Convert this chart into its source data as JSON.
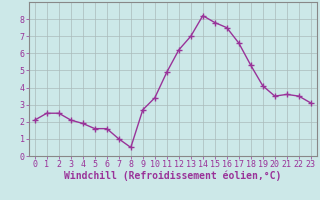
{
  "x": [
    0,
    1,
    2,
    3,
    4,
    5,
    6,
    7,
    8,
    9,
    10,
    11,
    12,
    13,
    14,
    15,
    16,
    17,
    18,
    19,
    20,
    21,
    22,
    23
  ],
  "y": [
    2.1,
    2.5,
    2.5,
    2.1,
    1.9,
    1.6,
    1.6,
    1.0,
    0.5,
    2.7,
    3.4,
    4.9,
    6.2,
    7.0,
    8.2,
    7.8,
    7.5,
    6.6,
    5.3,
    4.1,
    3.5,
    3.6,
    3.5,
    3.1
  ],
  "line_color": "#993399",
  "marker": "+",
  "marker_size": 4,
  "marker_lw": 1.0,
  "bg_color": "#cce8e8",
  "grid_color": "#aabbbb",
  "xlabel": "Windchill (Refroidissement éolien,°C)",
  "xlabel_color": "#993399",
  "ylim": [
    0,
    9
  ],
  "xlim": [
    -0.5,
    23.5
  ],
  "yticks": [
    0,
    1,
    2,
    3,
    4,
    5,
    6,
    7,
    8
  ],
  "xticks": [
    0,
    1,
    2,
    3,
    4,
    5,
    6,
    7,
    8,
    9,
    10,
    11,
    12,
    13,
    14,
    15,
    16,
    17,
    18,
    19,
    20,
    21,
    22,
    23
  ],
  "tick_label_color": "#993399",
  "tick_label_size": 6,
  "xlabel_size": 7,
  "linewidth": 1.0
}
